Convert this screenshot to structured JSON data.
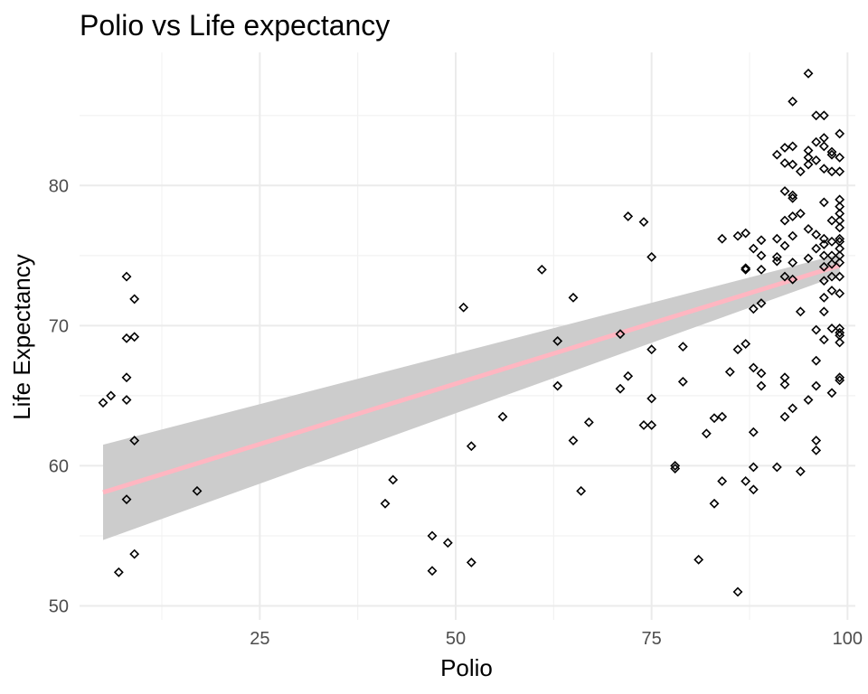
{
  "chart_data": {
    "type": "scatter",
    "title": "Polio vs Life expectancy",
    "xlabel": "Polio",
    "ylabel": "Life Expectancy",
    "xlim": [
      2,
      101
    ],
    "ylim": [
      49,
      89.5
    ],
    "x_ticks": [
      25,
      50,
      75,
      100
    ],
    "y_ticks": [
      50,
      60,
      70,
      80
    ],
    "grid": true,
    "legend": "none",
    "marker": "diamond-open",
    "colors": {
      "points": "#000000",
      "fit_line": "#ffb6c1",
      "confidence_band": "#cccccc"
    },
    "fit": {
      "method": "linear",
      "x": [
        5,
        99
      ],
      "y": [
        58.1,
        74.3
      ],
      "ci_lower": [
        54.7,
        73.6
      ],
      "ci_upper": [
        61.5,
        75.1
      ]
    },
    "points": [
      [
        5,
        64.5
      ],
      [
        6,
        65.0
      ],
      [
        7,
        52.4
      ],
      [
        8,
        57.6
      ],
      [
        8,
        64.7
      ],
      [
        8,
        66.3
      ],
      [
        8,
        69.1
      ],
      [
        8,
        73.5
      ],
      [
        9,
        53.7
      ],
      [
        9,
        61.8
      ],
      [
        9,
        69.2
      ],
      [
        9,
        71.9
      ],
      [
        17,
        58.2
      ],
      [
        41,
        57.3
      ],
      [
        42,
        59.0
      ],
      [
        47,
        52.5
      ],
      [
        47,
        55.0
      ],
      [
        49,
        54.5
      ],
      [
        51,
        71.3
      ],
      [
        52,
        53.1
      ],
      [
        52,
        61.4
      ],
      [
        56,
        63.5
      ],
      [
        61,
        74.0
      ],
      [
        63,
        65.7
      ],
      [
        63,
        68.9
      ],
      [
        65,
        61.8
      ],
      [
        65,
        72.0
      ],
      [
        66,
        58.2
      ],
      [
        67,
        63.1
      ],
      [
        71,
        65.5
      ],
      [
        71,
        69.4
      ],
      [
        72,
        66.4
      ],
      [
        72,
        77.8
      ],
      [
        74,
        62.9
      ],
      [
        74,
        77.4
      ],
      [
        75,
        62.9
      ],
      [
        75,
        64.8
      ],
      [
        75,
        68.3
      ],
      [
        75,
        74.9
      ],
      [
        78,
        59.8
      ],
      [
        78,
        60.0
      ],
      [
        79,
        66.0
      ],
      [
        79,
        68.5
      ],
      [
        81,
        53.3
      ],
      [
        82,
        62.3
      ],
      [
        83,
        57.3
      ],
      [
        83,
        63.4
      ],
      [
        84,
        58.9
      ],
      [
        84,
        63.5
      ],
      [
        84,
        76.2
      ],
      [
        85,
        66.7
      ],
      [
        86,
        51.0
      ],
      [
        86,
        68.3
      ],
      [
        86,
        76.4
      ],
      [
        87,
        58.9
      ],
      [
        87,
        68.7
      ],
      [
        87,
        74.0
      ],
      [
        87,
        74.1
      ],
      [
        87,
        76.6
      ],
      [
        88,
        58.3
      ],
      [
        88,
        59.9
      ],
      [
        88,
        62.4
      ],
      [
        88,
        67.0
      ],
      [
        88,
        71.2
      ],
      [
        88,
        75.5
      ],
      [
        89,
        65.7
      ],
      [
        89,
        66.6
      ],
      [
        89,
        71.6
      ],
      [
        89,
        74.0
      ],
      [
        89,
        75.0
      ],
      [
        89,
        76.1
      ],
      [
        91,
        59.9
      ],
      [
        91,
        74.6
      ],
      [
        91,
        74.9
      ],
      [
        91,
        76.2
      ],
      [
        91,
        82.2
      ],
      [
        92,
        63.5
      ],
      [
        92,
        65.8
      ],
      [
        92,
        66.3
      ],
      [
        92,
        73.5
      ],
      [
        92,
        75.7
      ],
      [
        92,
        77.5
      ],
      [
        92,
        79.6
      ],
      [
        92,
        81.6
      ],
      [
        92,
        82.7
      ],
      [
        93,
        64.1
      ],
      [
        93,
        73.3
      ],
      [
        93,
        74.5
      ],
      [
        93,
        76.4
      ],
      [
        93,
        77.8
      ],
      [
        93,
        79.1
      ],
      [
        93,
        79.3
      ],
      [
        93,
        81.5
      ],
      [
        93,
        82.8
      ],
      [
        93,
        86.0
      ],
      [
        94,
        59.6
      ],
      [
        94,
        71.0
      ],
      [
        94,
        78.0
      ],
      [
        94,
        81.0
      ],
      [
        95,
        64.7
      ],
      [
        95,
        74.8
      ],
      [
        95,
        76.9
      ],
      [
        95,
        81.5
      ],
      [
        95,
        82.0
      ],
      [
        95,
        82.5
      ],
      [
        95,
        88.0
      ],
      [
        96,
        61.1
      ],
      [
        96,
        61.8
      ],
      [
        96,
        65.7
      ],
      [
        96,
        67.5
      ],
      [
        96,
        69.7
      ],
      [
        96,
        75.5
      ],
      [
        96,
        76.5
      ],
      [
        96,
        81.8
      ],
      [
        96,
        83.1
      ],
      [
        96,
        85.0
      ],
      [
        97,
        69.0
      ],
      [
        97,
        71.0
      ],
      [
        97,
        72.0
      ],
      [
        97,
        73.2
      ],
      [
        97,
        74.2
      ],
      [
        97,
        75.0
      ],
      [
        97,
        75.8
      ],
      [
        97,
        76.2
      ],
      [
        97,
        78.8
      ],
      [
        97,
        81.2
      ],
      [
        97,
        82.8
      ],
      [
        97,
        83.4
      ],
      [
        97,
        85.0
      ],
      [
        98,
        65.2
      ],
      [
        98,
        69.8
      ],
      [
        98,
        72.5
      ],
      [
        98,
        73.5
      ],
      [
        98,
        74.4
      ],
      [
        98,
        75.0
      ],
      [
        98,
        76.0
      ],
      [
        98,
        77.5
      ],
      [
        98,
        81.0
      ],
      [
        98,
        82.2
      ],
      [
        98,
        82.4
      ],
      [
        99,
        66.1
      ],
      [
        99,
        66.3
      ],
      [
        99,
        68.8
      ],
      [
        99,
        69.3
      ],
      [
        99,
        69.5
      ],
      [
        99,
        69.8
      ],
      [
        99,
        72.3
      ],
      [
        99,
        73.5
      ],
      [
        99,
        74.5
      ],
      [
        99,
        75.0
      ],
      [
        99,
        75.5
      ],
      [
        99,
        76.0
      ],
      [
        99,
        76.2
      ],
      [
        99,
        77.0
      ],
      [
        99,
        77.5
      ],
      [
        99,
        78.0
      ],
      [
        99,
        78.5
      ],
      [
        99,
        79.0
      ],
      [
        99,
        81.0
      ],
      [
        99,
        82.0
      ],
      [
        99,
        83.7
      ]
    ]
  }
}
